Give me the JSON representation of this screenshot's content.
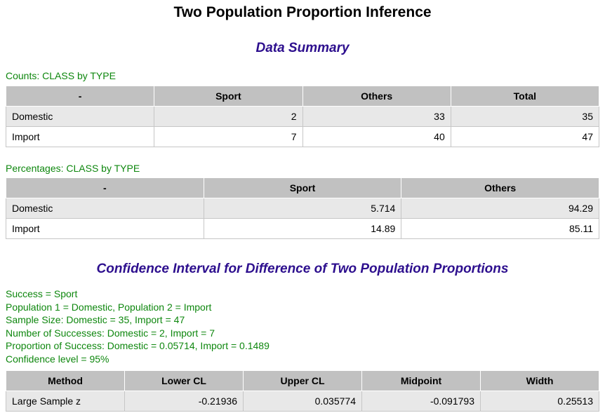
{
  "page": {
    "title": "Two Population Proportion Inference",
    "data_summary_heading": "Data Summary",
    "ci_heading": "Confidence Interval for Difference of Two Population Proportions"
  },
  "counts_table": {
    "caption": "Counts: CLASS by TYPE",
    "headers": [
      "-",
      "Sport",
      "Others",
      "Total"
    ],
    "rows": [
      {
        "label": "Domestic",
        "values": [
          "2",
          "33",
          "35"
        ]
      },
      {
        "label": "Import",
        "values": [
          "7",
          "40",
          "47"
        ]
      }
    ]
  },
  "percent_table": {
    "caption": "Percentages: CLASS by TYPE",
    "headers": [
      "-",
      "Sport",
      "Others"
    ],
    "rows": [
      {
        "label": "Domestic",
        "values": [
          "5.714",
          "94.29"
        ]
      },
      {
        "label": "Import",
        "values": [
          "14.89",
          "85.11"
        ]
      }
    ]
  },
  "ci_info": {
    "lines": [
      "Success = Sport",
      "Population 1 = Domestic, Population 2 = Import",
      "Sample Size: Domestic = 35, Import = 47",
      "Number of Successes: Domestic = 2, Import = 7",
      "Proportion of Success: Domestic = 0.05714, Import = 0.1489",
      "Confidence level = 95%"
    ]
  },
  "ci_table": {
    "headers": [
      "Method",
      "Lower CL",
      "Upper CL",
      "Midpoint",
      "Width"
    ],
    "rows": [
      {
        "label": "Large Sample z",
        "values": [
          "-0.21936",
          "0.035774",
          "-0.091793",
          "0.25513"
        ]
      }
    ]
  },
  "colors": {
    "heading_purple": "#2d0f8e",
    "text_green": "#0e870e",
    "table_header_gray": "#c1c1c1",
    "table_stripe_gray": "#e8e8e8",
    "table_border_gray": "#c6c6c6"
  }
}
